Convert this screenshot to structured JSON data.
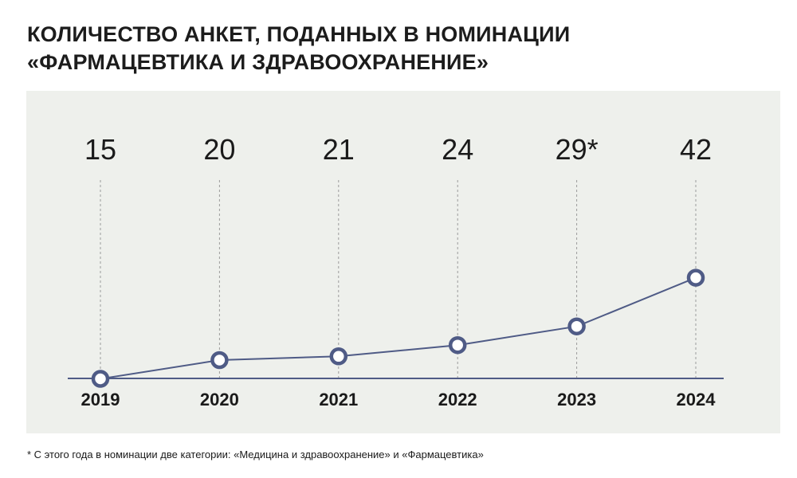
{
  "title": {
    "line1": "КОЛИЧЕСТВО АНКЕТ, ПОДАННЫХ В НОМИНАЦИИ",
    "line2": "«ФАРМАЦЕВТИКА И ЗДРАВООХРАНЕНИЕ»"
  },
  "footnote": "* С этого года в номинации две категории: «Медицина и здравоохранение» и «Фармацевтика»",
  "colors": {
    "background": "#eef0ec",
    "line": "#4f5b86",
    "axis": "#4f5b86",
    "grid": "#9b9b9b"
  },
  "chart_data": {
    "type": "line",
    "categories": [
      "2019",
      "2020",
      "2021",
      "2022",
      "2023",
      "2024"
    ],
    "values": [
      15,
      20,
      21,
      24,
      29,
      42
    ],
    "value_labels": [
      "15",
      "20",
      "21",
      "24",
      "29*",
      "42"
    ],
    "xlabel": "",
    "ylabel": "",
    "grid": "vertical dashed",
    "legend": "none"
  }
}
